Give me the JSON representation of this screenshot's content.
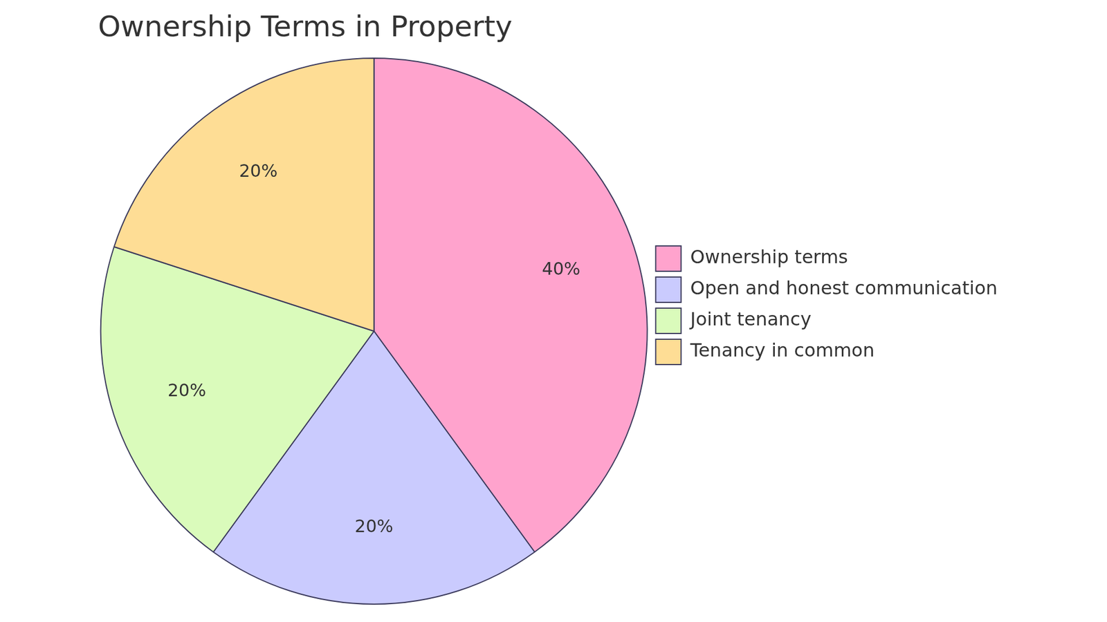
{
  "chart_data": {
    "type": "pie",
    "title": "Ownership Terms in Property",
    "categories": [
      "Ownership terms",
      "Open and honest communication",
      "Joint tenancy",
      "Tenancy in common"
    ],
    "values": [
      40,
      20,
      20,
      20
    ],
    "value_labels": [
      "40%",
      "20%",
      "20%",
      "20%"
    ],
    "colors": [
      "#ffa3cd",
      "#cacbfe",
      "#dafbbb",
      "#fedd95"
    ],
    "legend": "right",
    "data_labels": true
  }
}
